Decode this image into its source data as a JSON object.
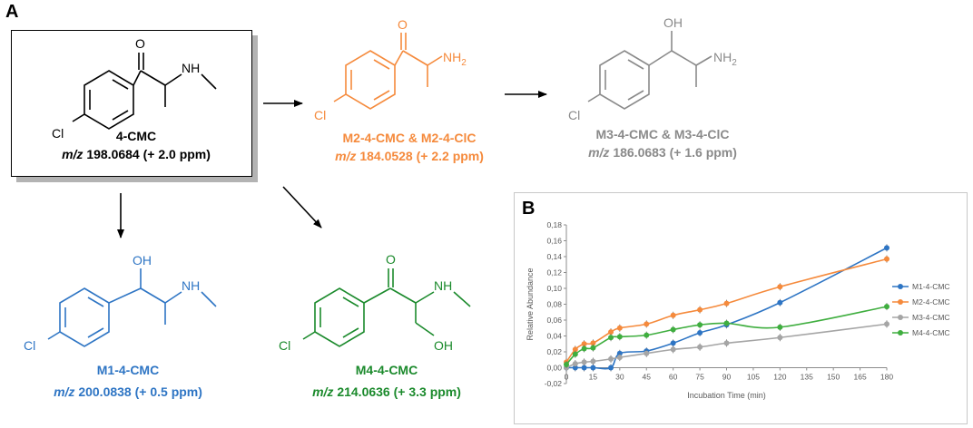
{
  "panels": {
    "a": "A",
    "b": "B"
  },
  "atoms": {
    "o": "O",
    "oh": "OH",
    "nh": "NH",
    "nh2": "NH",
    "nh2_sub": "2",
    "cl": "Cl"
  },
  "compounds": {
    "parent": {
      "name": "4-CMC",
      "mz_prefix": "m/z",
      "mz_value": " 198.0684 (+ 2.0 ppm)",
      "color": "#000000"
    },
    "m2": {
      "name": "M2-4-CMC & M2-4-ClC",
      "mz_prefix": "m/z",
      "mz_value": " 184.0528 (+ 2.2 ppm)",
      "color": "#f58a3c"
    },
    "m3": {
      "name": "M3-4-CMC & M3-4-ClC",
      "mz_prefix": "m/z",
      "mz_value": " 186.0683 (+ 1.6 ppm)",
      "color": "#8a8a8a"
    },
    "m1": {
      "name": "M1-4-CMC",
      "mz_prefix": "m/z",
      "mz_value": " 200.0838 (+ 0.5 ppm)",
      "color": "#2e75c4"
    },
    "m4": {
      "name": "M4-4-CMC",
      "mz_prefix": "m/z",
      "mz_value": " 214.0636 (+ 3.3 ppm)",
      "color": "#1b8a2c"
    }
  },
  "chart_data": {
    "type": "line",
    "xlabel": "Incubation Time (min)",
    "ylabel": "Relative Abundance",
    "x": [
      0,
      5,
      10,
      15,
      20,
      25,
      30,
      45,
      60,
      75,
      90,
      120,
      180
    ],
    "x_ticks": [
      "0",
      "15",
      "30",
      "45",
      "60",
      "75",
      "90",
      "105",
      "120",
      "135",
      "150",
      "165",
      "180"
    ],
    "x_tick_values": [
      0,
      15,
      30,
      45,
      60,
      75,
      90,
      105,
      120,
      135,
      150,
      165,
      180
    ],
    "y_ticks": [
      "-0,02",
      "0,00",
      "0,02",
      "0,04",
      "0,06",
      "0,08",
      "0,10",
      "0,12",
      "0,14",
      "0,16",
      "0,18"
    ],
    "y_tick_values": [
      -0.02,
      0.0,
      0.02,
      0.04,
      0.06,
      0.08,
      0.1,
      0.12,
      0.14,
      0.16,
      0.18
    ],
    "xlim": [
      0,
      180
    ],
    "ylim": [
      -0.02,
      0.18
    ],
    "legend_position": "right",
    "series": [
      {
        "name": "M1-4-CMC",
        "color": "#2e75c4",
        "points": [
          [
            0,
            0.0
          ],
          [
            5,
            0.0
          ],
          [
            10,
            0.0
          ],
          [
            15,
            0.0
          ],
          [
            25,
            0.0
          ],
          [
            30,
            0.018
          ],
          [
            45,
            0.021
          ],
          [
            60,
            0.031
          ],
          [
            75,
            0.044
          ],
          [
            90,
            0.054
          ],
          [
            120,
            0.082
          ],
          [
            180,
            0.151
          ]
        ]
      },
      {
        "name": "M2-4-CMC",
        "color": "#f58a3c",
        "points": [
          [
            0,
            0.007
          ],
          [
            5,
            0.023
          ],
          [
            10,
            0.03
          ],
          [
            15,
            0.031
          ],
          [
            25,
            0.045
          ],
          [
            30,
            0.05
          ],
          [
            45,
            0.055
          ],
          [
            60,
            0.066
          ],
          [
            75,
            0.073
          ],
          [
            90,
            0.081
          ],
          [
            120,
            0.102
          ],
          [
            180,
            0.137
          ]
        ]
      },
      {
        "name": "M3-4-CMC",
        "color": "#a5a5a5",
        "points": [
          [
            0,
            0.0
          ],
          [
            5,
            0.005
          ],
          [
            10,
            0.007
          ],
          [
            15,
            0.008
          ],
          [
            25,
            0.011
          ],
          [
            30,
            0.013
          ],
          [
            45,
            0.018
          ],
          [
            60,
            0.023
          ],
          [
            75,
            0.026
          ],
          [
            90,
            0.031
          ],
          [
            120,
            0.038
          ],
          [
            180,
            0.055
          ]
        ]
      },
      {
        "name": "M4-4-CMC",
        "color": "#3fae3f",
        "points": [
          [
            0,
            0.004
          ],
          [
            5,
            0.017
          ],
          [
            10,
            0.024
          ],
          [
            15,
            0.025
          ],
          [
            25,
            0.038
          ],
          [
            30,
            0.039
          ],
          [
            45,
            0.041
          ],
          [
            60,
            0.048
          ],
          [
            75,
            0.054
          ],
          [
            90,
            0.056
          ],
          [
            120,
            0.051
          ],
          [
            180,
            0.077
          ]
        ]
      }
    ]
  }
}
